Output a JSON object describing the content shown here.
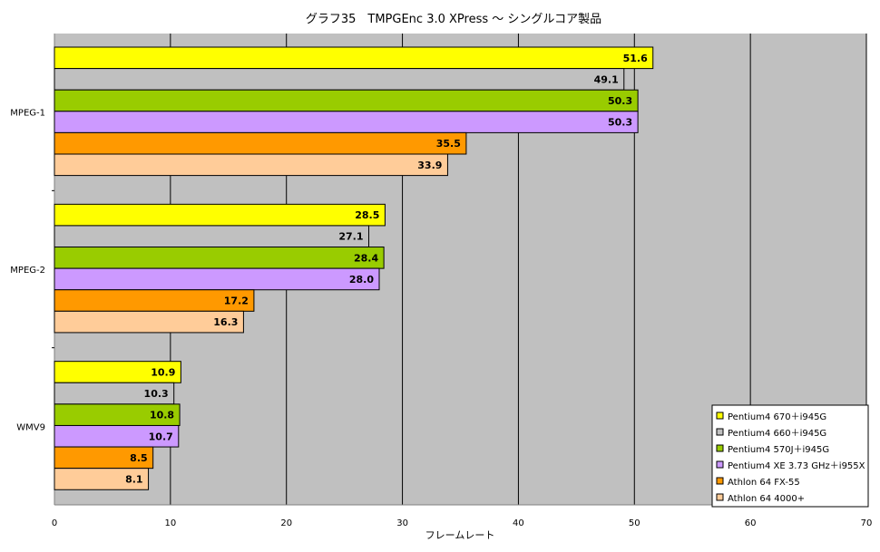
{
  "chart_data": {
    "type": "bar",
    "orientation": "horizontal",
    "title": "グラフ35　TMPGEnc 3.0 XPress ～ シングルコア製品",
    "xlabel": "フレームレート",
    "ylabel": "",
    "xlim": [
      0,
      70
    ],
    "xticks": [
      0,
      10,
      20,
      30,
      40,
      50,
      60,
      70
    ],
    "grid": "vertical",
    "legend_position": "bottom-right",
    "plot_background": "#c0c0c0",
    "categories": [
      "MPEG-1",
      "MPEG-2",
      "WMV9"
    ],
    "series": [
      {
        "name": "Pentium4 670＋i945G",
        "color": "#ffff00",
        "values": [
          51.6,
          28.5,
          10.9
        ],
        "labels": [
          "51.6",
          "28.5",
          "10.9"
        ]
      },
      {
        "name": "Pentium4 660＋i945G",
        "color": "#c0c0c0",
        "values": [
          49.1,
          27.1,
          10.3
        ],
        "labels": [
          "49.1",
          "27.1",
          "10.3"
        ]
      },
      {
        "name": "Pentium4 570J＋i945G",
        "color": "#99cc00",
        "values": [
          50.3,
          28.4,
          10.8
        ],
        "labels": [
          "50.3",
          "28.4",
          "10.8"
        ]
      },
      {
        "name": "Pentium4 XE 3.73 GHz＋i955X",
        "color": "#cc99ff",
        "values": [
          50.3,
          28.0,
          10.7
        ],
        "labels": [
          "50.3",
          "28.0",
          "10.7"
        ]
      },
      {
        "name": "Athlon 64 FX-55",
        "color": "#ff9900",
        "values": [
          35.5,
          17.2,
          8.5
        ],
        "labels": [
          "35.5",
          "17.2",
          "8.5"
        ]
      },
      {
        "name": "Athlon 64 4000+",
        "color": "#ffcc99",
        "values": [
          33.9,
          16.3,
          8.1
        ],
        "labels": [
          "33.9",
          "16.3",
          "8.1"
        ]
      }
    ]
  }
}
